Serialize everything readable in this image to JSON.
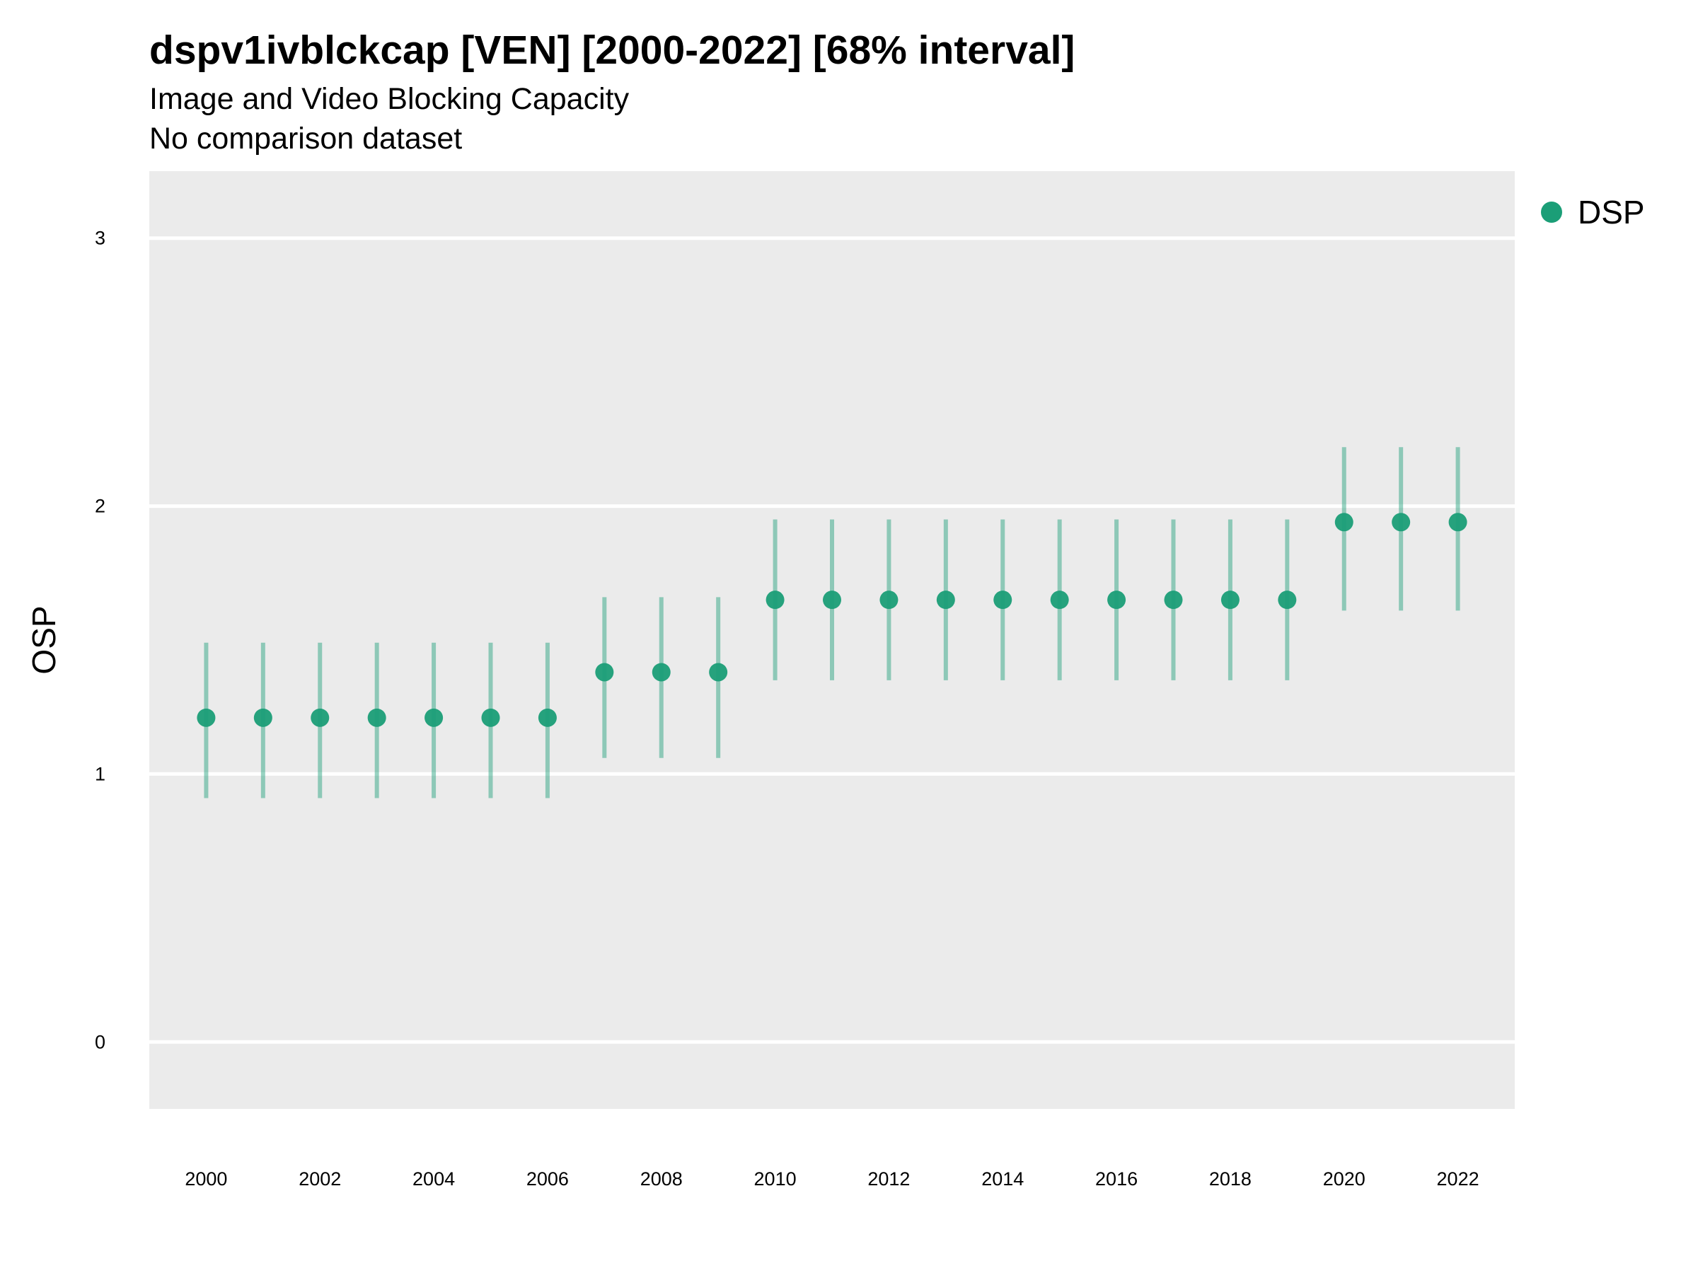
{
  "title": "dspv1ivblckcap [VEN] [2000-2022] [68% interval]",
  "subtitle": "Image and Video Blocking Capacity",
  "comparison_note": "No comparison dataset",
  "legend": {
    "label": "DSP",
    "color": "#1b9e77"
  },
  "colors": {
    "panel": "#ebebeb",
    "grid": "#ffffff",
    "point": "#1b9e77"
  },
  "chart_data": {
    "type": "scatter",
    "title": "dspv1ivblckcap [VEN] [2000-2022] [68% interval]",
    "subtitle": "Image and Video Blocking Capacity",
    "xlabel": "",
    "ylabel": "OSP",
    "xlim": [
      1999,
      2023
    ],
    "ylim": [
      -0.25,
      3.25
    ],
    "grid": true,
    "legend_position": "top-right",
    "x_ticks": [
      "2000",
      "2002",
      "2004",
      "2006",
      "2008",
      "2010",
      "2012",
      "2014",
      "2016",
      "2018",
      "2020",
      "2022"
    ],
    "y_ticks": [
      "0",
      "1",
      "2",
      "3"
    ],
    "series": [
      {
        "name": "DSP",
        "x": [
          2000,
          2001,
          2002,
          2003,
          2004,
          2005,
          2006,
          2007,
          2008,
          2009,
          2010,
          2011,
          2012,
          2013,
          2014,
          2015,
          2016,
          2017,
          2018,
          2019,
          2020,
          2021,
          2022
        ],
        "y": [
          1.21,
          1.21,
          1.21,
          1.21,
          1.21,
          1.21,
          1.21,
          1.38,
          1.38,
          1.38,
          1.65,
          1.65,
          1.65,
          1.65,
          1.65,
          1.65,
          1.65,
          1.65,
          1.65,
          1.65,
          1.94,
          1.94,
          1.94
        ],
        "lower": [
          0.91,
          0.91,
          0.91,
          0.91,
          0.91,
          0.91,
          0.91,
          1.06,
          1.06,
          1.06,
          1.35,
          1.35,
          1.35,
          1.35,
          1.35,
          1.35,
          1.35,
          1.35,
          1.35,
          1.35,
          1.61,
          1.61,
          1.61
        ],
        "upper": [
          1.49,
          1.49,
          1.49,
          1.49,
          1.49,
          1.49,
          1.49,
          1.66,
          1.66,
          1.66,
          1.95,
          1.95,
          1.95,
          1.95,
          1.95,
          1.95,
          1.95,
          1.95,
          1.95,
          1.95,
          2.22,
          2.22,
          2.22
        ]
      }
    ]
  }
}
